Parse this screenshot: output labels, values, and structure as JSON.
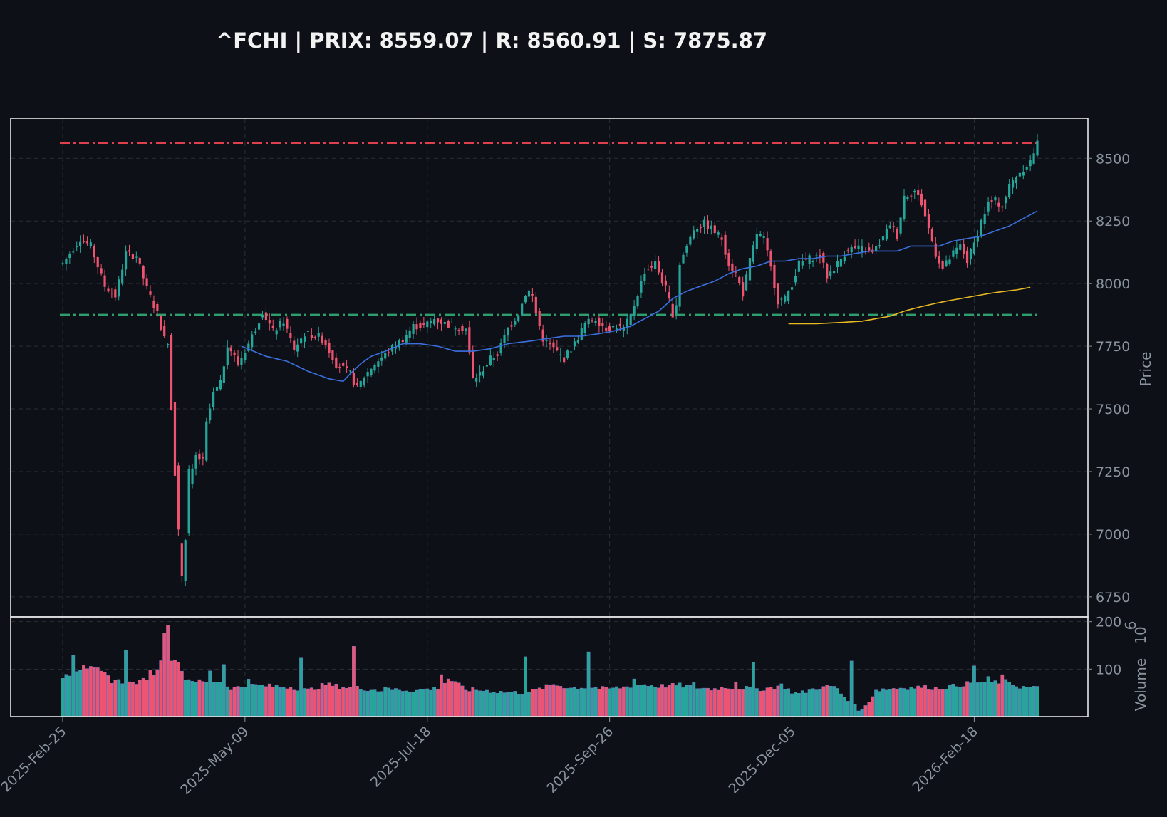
{
  "chart_data": {
    "type": "candlestick",
    "title": "^FCHI | PRIX: 8559.07 | R: 8560.91 | S: 7875.87",
    "ylabel": "Price",
    "volume_label": "Volume",
    "volume_exponent": "6",
    "ylim": [
      6670,
      8660
    ],
    "ytick_values": [
      6750,
      7000,
      7250,
      7500,
      7750,
      8000,
      8250,
      8500
    ],
    "volume_ylim": [
      0,
      210
    ],
    "volume_tick_values": [
      100,
      200
    ],
    "x_tick_labels": [
      "2025-Feb-25",
      "2025-May-09",
      "2025-Jul-18",
      "2025-Sep-26",
      "2025-Dec-05",
      "2026-Feb-18"
    ],
    "x_tick_index": [
      0,
      52,
      104,
      156,
      208,
      260
    ],
    "resistance": 8560.91,
    "support": 7875.87,
    "colors": {
      "up": "#26a69a",
      "down": "#ef5370",
      "resistance": "#e0404e",
      "support": "#2e9e6e",
      "ma_short": "#3b6fe0",
      "ma_long": "#e8b923",
      "grid": "#2a2f36"
    },
    "grid": true,
    "price_anchors": [
      [
        0,
        8080
      ],
      [
        5,
        8180
      ],
      [
        8,
        8150
      ],
      [
        12,
        7990
      ],
      [
        15,
        7950
      ],
      [
        18,
        8120
      ],
      [
        21,
        8110
      ],
      [
        24,
        7980
      ],
      [
        27,
        7880
      ],
      [
        29,
        7780
      ],
      [
        30,
        7760
      ],
      [
        31,
        7540
      ],
      [
        32,
        7280
      ],
      [
        33,
        6990
      ],
      [
        34,
        6850
      ],
      [
        35,
        7000
      ],
      [
        36,
        7210
      ],
      [
        37,
        7250
      ],
      [
        38,
        7310
      ],
      [
        40,
        7290
      ],
      [
        41,
        7440
      ],
      [
        43,
        7560
      ],
      [
        45,
        7600
      ],
      [
        47,
        7760
      ],
      [
        50,
        7680
      ],
      [
        53,
        7760
      ],
      [
        55,
        7820
      ],
      [
        57,
        7890
      ],
      [
        60,
        7810
      ],
      [
        63,
        7850
      ],
      [
        66,
        7740
      ],
      [
        69,
        7800
      ],
      [
        73,
        7790
      ],
      [
        75,
        7760
      ],
      [
        78,
        7680
      ],
      [
        82,
        7640
      ],
      [
        84,
        7580
      ],
      [
        86,
        7630
      ],
      [
        89,
        7680
      ],
      [
        93,
        7730
      ],
      [
        97,
        7780
      ],
      [
        100,
        7830
      ],
      [
        103,
        7830
      ],
      [
        106,
        7860
      ],
      [
        109,
        7840
      ],
      [
        112,
        7830
      ],
      [
        115,
        7820
      ],
      [
        117,
        7620
      ],
      [
        119,
        7640
      ],
      [
        122,
        7700
      ],
      [
        124,
        7720
      ],
      [
        127,
        7820
      ],
      [
        130,
        7880
      ],
      [
        132,
        7960
      ],
      [
        133,
        7970
      ],
      [
        134,
        7950
      ],
      [
        135,
        7880
      ],
      [
        137,
        7780
      ],
      [
        140,
        7740
      ],
      [
        143,
        7700
      ],
      [
        146,
        7760
      ],
      [
        149,
        7840
      ],
      [
        152,
        7860
      ],
      [
        155,
        7820
      ],
      [
        158,
        7830
      ],
      [
        160,
        7820
      ],
      [
        162,
        7870
      ],
      [
        164,
        7960
      ],
      [
        166,
        8050
      ],
      [
        169,
        8080
      ],
      [
        172,
        7980
      ],
      [
        174,
        7880
      ],
      [
        175,
        7920
      ],
      [
        176,
        8080
      ],
      [
        178,
        8150
      ],
      [
        180,
        8220
      ],
      [
        183,
        8240
      ],
      [
        185,
        8220
      ],
      [
        188,
        8180
      ],
      [
        190,
        8080
      ],
      [
        192,
        8040
      ],
      [
        194,
        7960
      ],
      [
        196,
        8090
      ],
      [
        198,
        8200
      ],
      [
        200,
        8180
      ],
      [
        202,
        8060
      ],
      [
        204,
        7930
      ],
      [
        206,
        7940
      ],
      [
        208,
        8000
      ],
      [
        210,
        8080
      ],
      [
        213,
        8100
      ],
      [
        216,
        8110
      ],
      [
        218,
        8030
      ],
      [
        221,
        8080
      ],
      [
        224,
        8140
      ],
      [
        228,
        8140
      ],
      [
        231,
        8120
      ],
      [
        234,
        8180
      ],
      [
        236,
        8240
      ],
      [
        238,
        8190
      ],
      [
        240,
        8350
      ],
      [
        243,
        8370
      ],
      [
        245,
        8320
      ],
      [
        247,
        8220
      ],
      [
        249,
        8120
      ],
      [
        251,
        8060
      ],
      [
        254,
        8120
      ],
      [
        256,
        8150
      ],
      [
        258,
        8090
      ],
      [
        260,
        8160
      ],
      [
        262,
        8250
      ],
      [
        264,
        8320
      ],
      [
        266,
        8330
      ],
      [
        268,
        8310
      ],
      [
        270,
        8390
      ],
      [
        272,
        8430
      ],
      [
        274,
        8460
      ],
      [
        276,
        8490
      ],
      [
        278,
        8559
      ]
    ],
    "volume_anchors": [
      [
        0,
        80
      ],
      [
        3,
        95
      ],
      [
        6,
        105
      ],
      [
        10,
        98
      ],
      [
        14,
        80
      ],
      [
        18,
        70
      ],
      [
        22,
        73
      ],
      [
        26,
        90
      ],
      [
        28,
        115
      ],
      [
        29,
        180
      ],
      [
        30,
        197
      ],
      [
        31,
        120
      ],
      [
        33,
        110
      ],
      [
        35,
        80
      ],
      [
        40,
        72
      ],
      [
        45,
        75
      ],
      [
        48,
        60
      ],
      [
        55,
        66
      ],
      [
        65,
        62
      ],
      [
        70,
        55
      ],
      [
        75,
        68
      ],
      [
        80,
        62
      ],
      [
        85,
        60
      ],
      [
        90,
        55
      ],
      [
        95,
        57
      ],
      [
        100,
        55
      ],
      [
        105,
        58
      ],
      [
        108,
        62
      ],
      [
        110,
        80
      ],
      [
        115,
        57
      ],
      [
        120,
        55
      ],
      [
        125,
        52
      ],
      [
        130,
        50
      ],
      [
        135,
        55
      ],
      [
        140,
        68
      ],
      [
        145,
        60
      ],
      [
        150,
        62
      ],
      [
        155,
        58
      ],
      [
        160,
        62
      ],
      [
        165,
        68
      ],
      [
        170,
        64
      ],
      [
        175,
        66
      ],
      [
        180,
        62
      ],
      [
        185,
        58
      ],
      [
        190,
        62
      ],
      [
        195,
        60
      ],
      [
        200,
        58
      ],
      [
        205,
        66
      ],
      [
        208,
        52
      ],
      [
        210,
        48
      ],
      [
        215,
        60
      ],
      [
        220,
        64
      ],
      [
        225,
        26
      ],
      [
        228,
        12
      ],
      [
        232,
        56
      ],
      [
        238,
        60
      ],
      [
        245,
        62
      ],
      [
        250,
        60
      ],
      [
        256,
        66
      ],
      [
        260,
        73
      ],
      [
        265,
        72
      ],
      [
        270,
        74
      ],
      [
        272,
        64
      ],
      [
        274,
        62
      ],
      [
        278,
        60
      ]
    ],
    "volume_spikes": [
      [
        1,
        92
      ],
      [
        3,
        132
      ],
      [
        6,
        112
      ],
      [
        14,
        75
      ],
      [
        18,
        145
      ],
      [
        25,
        95
      ],
      [
        29,
        180
      ],
      [
        30,
        197
      ],
      [
        33,
        120
      ],
      [
        36,
        78
      ],
      [
        42,
        94
      ],
      [
        46,
        110
      ],
      [
        53,
        84
      ],
      [
        68,
        124
      ],
      [
        83,
        148
      ],
      [
        92,
        65
      ],
      [
        108,
        90
      ],
      [
        132,
        130
      ],
      [
        150,
        138
      ],
      [
        163,
        80
      ],
      [
        176,
        66
      ],
      [
        180,
        68
      ],
      [
        192,
        75
      ],
      [
        197,
        110
      ],
      [
        225,
        122
      ],
      [
        240,
        62
      ],
      [
        260,
        104
      ],
      [
        264,
        80
      ],
      [
        268,
        84
      ]
    ],
    "ma_short_anchors": [
      [
        51,
        7750
      ],
      [
        58,
        7710
      ],
      [
        64,
        7690
      ],
      [
        70,
        7650
      ],
      [
        76,
        7620
      ],
      [
        80,
        7610
      ],
      [
        82,
        7640
      ],
      [
        85,
        7680
      ],
      [
        88,
        7710
      ],
      [
        92,
        7730
      ],
      [
        97,
        7760
      ],
      [
        102,
        7760
      ],
      [
        107,
        7750
      ],
      [
        112,
        7730
      ],
      [
        117,
        7730
      ],
      [
        122,
        7740
      ],
      [
        127,
        7760
      ],
      [
        133,
        7770
      ],
      [
        138,
        7780
      ],
      [
        143,
        7790
      ],
      [
        148,
        7790
      ],
      [
        153,
        7800
      ],
      [
        157,
        7810
      ],
      [
        162,
        7830
      ],
      [
        166,
        7860
      ],
      [
        170,
        7890
      ],
      [
        174,
        7940
      ],
      [
        178,
        7970
      ],
      [
        182,
        7990
      ],
      [
        186,
        8010
      ],
      [
        190,
        8040
      ],
      [
        194,
        8060
      ],
      [
        198,
        8070
      ],
      [
        202,
        8090
      ],
      [
        206,
        8090
      ],
      [
        210,
        8100
      ],
      [
        214,
        8100
      ],
      [
        218,
        8110
      ],
      [
        222,
        8110
      ],
      [
        226,
        8120
      ],
      [
        230,
        8130
      ],
      [
        234,
        8130
      ],
      [
        238,
        8130
      ],
      [
        242,
        8150
      ],
      [
        246,
        8150
      ],
      [
        250,
        8150
      ],
      [
        254,
        8170
      ],
      [
        258,
        8180
      ],
      [
        262,
        8190
      ],
      [
        266,
        8210
      ],
      [
        270,
        8230
      ],
      [
        274,
        8260
      ],
      [
        278,
        8290
      ]
    ],
    "ma_long_anchors": [
      [
        207,
        7840
      ],
      [
        215,
        7840
      ],
      [
        222,
        7845
      ],
      [
        228,
        7850
      ],
      [
        232,
        7860
      ],
      [
        236,
        7870
      ],
      [
        240,
        7890
      ],
      [
        244,
        7905
      ],
      [
        248,
        7918
      ],
      [
        252,
        7930
      ],
      [
        256,
        7940
      ],
      [
        260,
        7950
      ],
      [
        264,
        7960
      ],
      [
        268,
        7968
      ],
      [
        272,
        7975
      ],
      [
        276,
        7985
      ]
    ]
  }
}
